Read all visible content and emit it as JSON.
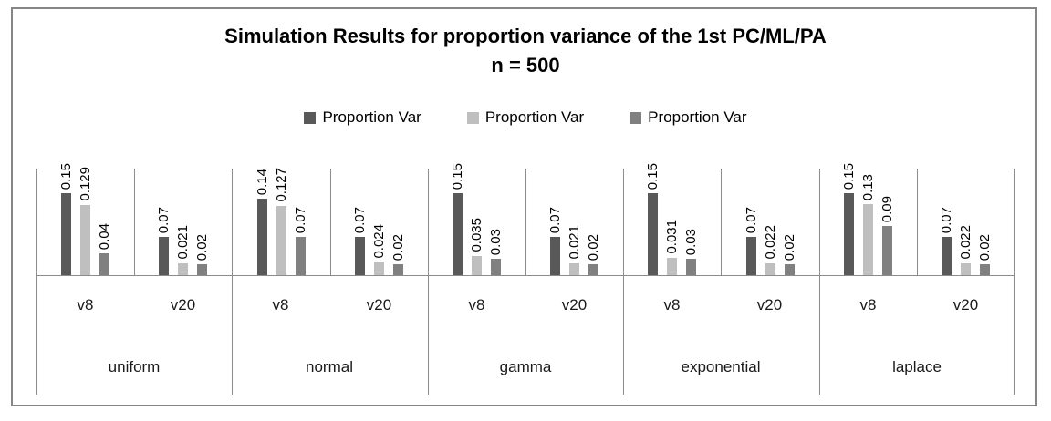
{
  "chart_data": {
    "type": "bar",
    "title": "Simulation Results for proportion variance of the 1st PC/ML/PA",
    "subtitle": "n = 500",
    "legend_position": "top",
    "value_label_rotation": 90,
    "grid": false,
    "ylim": [
      0,
      0.197
    ],
    "series": [
      {
        "name": "Proportion Var",
        "color": "#595959"
      },
      {
        "name": "Proportion Var",
        "color": "#bfbfbf"
      },
      {
        "name": "Proportion Var",
        "color": "#808080"
      }
    ],
    "groups": [
      {
        "label": "uniform",
        "subgroups": [
          {
            "label": "v8",
            "values": [
              0.15,
              0.129,
              0.04
            ]
          },
          {
            "label": "v20",
            "values": [
              0.07,
              0.021,
              0.02
            ]
          }
        ]
      },
      {
        "label": "normal",
        "subgroups": [
          {
            "label": "v8",
            "values": [
              0.14,
              0.127,
              0.07
            ]
          },
          {
            "label": "v20",
            "values": [
              0.07,
              0.024,
              0.02
            ]
          }
        ]
      },
      {
        "label": "gamma",
        "subgroups": [
          {
            "label": "v8",
            "values": [
              0.15,
              0.035,
              0.03
            ]
          },
          {
            "label": "v20",
            "values": [
              0.07,
              0.021,
              0.02
            ]
          }
        ]
      },
      {
        "label": "exponential",
        "subgroups": [
          {
            "label": "v8",
            "values": [
              0.15,
              0.031,
              0.03
            ]
          },
          {
            "label": "v20",
            "values": [
              0.07,
              0.022,
              0.02
            ]
          }
        ]
      },
      {
        "label": "laplace",
        "subgroups": [
          {
            "label": "v8",
            "values": [
              0.15,
              0.13,
              0.09
            ]
          },
          {
            "label": "v20",
            "values": [
              0.07,
              0.022,
              0.02
            ]
          }
        ]
      }
    ]
  },
  "colors": {
    "frame_border": "#868686",
    "axis_line": "#8c8c8c",
    "text": "#000000"
  }
}
